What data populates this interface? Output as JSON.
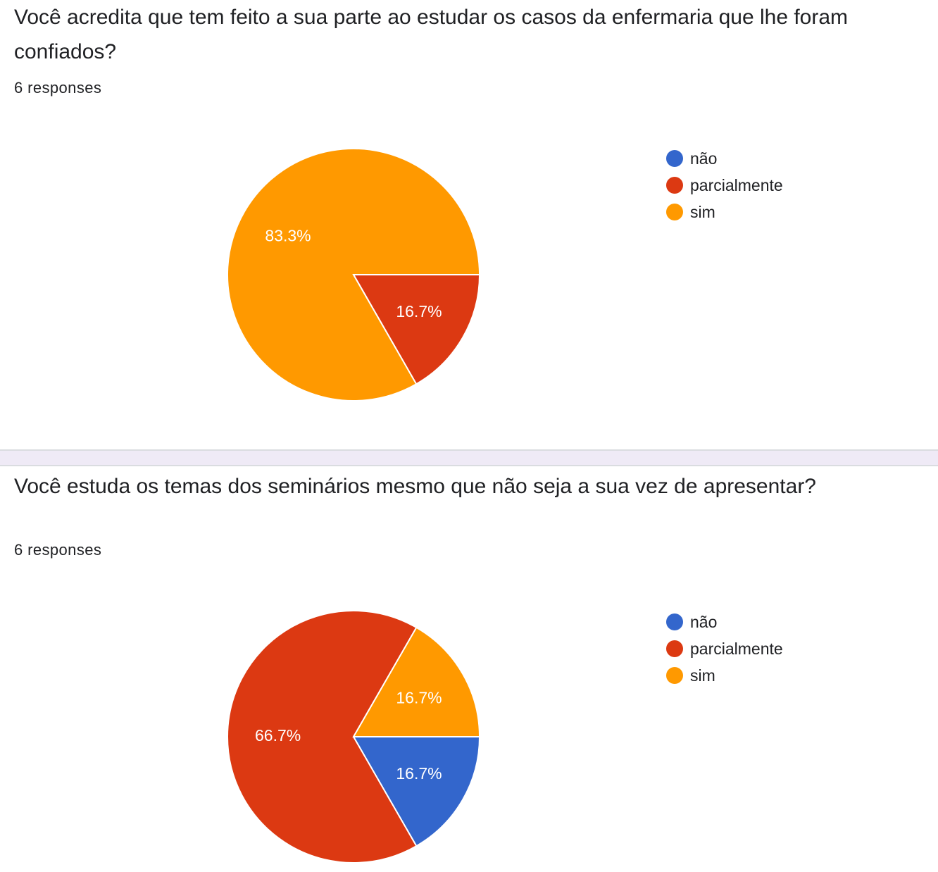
{
  "questions": [
    {
      "title": "Você acredita que tem feito a sua parte ao estudar os casos da enfermaria que lhe foram confiados?",
      "responses": "6 responses"
    },
    {
      "title": "Você estuda os temas dos seminários mesmo que não seja a sua vez de apresentar?",
      "responses": "6 responses"
    }
  ],
  "legend": [
    {
      "label": "não",
      "color": "#3366cc"
    },
    {
      "label": "parcialmente",
      "color": "#dc3912"
    },
    {
      "label": "sim",
      "color": "#ff9900"
    }
  ],
  "chart_data": [
    {
      "type": "pie",
      "categories": [
        "não",
        "parcialmente",
        "sim"
      ],
      "values": [
        0,
        16.7,
        83.3
      ],
      "colors": [
        "#3366cc",
        "#dc3912",
        "#ff9900"
      ],
      "slice_labels": [
        "",
        "16.7%",
        "83.3%"
      ],
      "start": "3 o'clock, clockwise",
      "legend_position": "right"
    },
    {
      "type": "pie",
      "categories": [
        "não",
        "parcialmente",
        "sim"
      ],
      "values": [
        16.7,
        66.7,
        16.7
      ],
      "colors": [
        "#3366cc",
        "#dc3912",
        "#ff9900"
      ],
      "slice_labels": [
        "16.7%",
        "66.7%",
        "16.7%"
      ],
      "start": "3 o'clock, clockwise",
      "legend_position": "right"
    }
  ]
}
